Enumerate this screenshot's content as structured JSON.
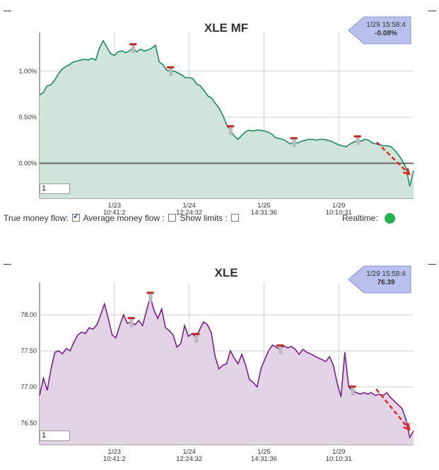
{
  "chart_data": [
    {
      "type": "area",
      "title": "XLE MF",
      "badge": {
        "time": "1/29 15:58:4",
        "value": "-0.08%"
      },
      "y_ticks": [
        "1.00%",
        "0.50%",
        "0.00%"
      ],
      "x_ticks": [
        {
          "date": "1/23",
          "time": "10:41:2"
        },
        {
          "date": "1/24",
          "time": "12:24:32"
        },
        {
          "date": "1/25",
          "time": "14:31:36"
        },
        {
          "date": "1/29",
          "time": "10:10:31"
        }
      ],
      "x_tick_pos": [
        0.2,
        0.4,
        0.6,
        0.8
      ],
      "ylim": [
        -0.38,
        1.42
      ],
      "zero_line": 0,
      "input_value": "1",
      "line_color": "#1e8a60",
      "fill_color": "#cfe5dc",
      "values": [
        0.74,
        0.77,
        0.84,
        0.85,
        0.9,
        0.97,
        1.02,
        1.05,
        1.07,
        1.1,
        1.11,
        1.12,
        1.13,
        1.12,
        1.14,
        1.12,
        1.25,
        1.33,
        1.26,
        1.19,
        1.17,
        1.21,
        1.22,
        1.2,
        1.22,
        1.25,
        1.21,
        1.24,
        1.22,
        1.23,
        1.25,
        1.28,
        1.1,
        1.07,
        1.01,
        1.0,
        1.0,
        0.98,
        0.96,
        0.93,
        0.93,
        0.92,
        0.86,
        0.84,
        0.79,
        0.73,
        0.71,
        0.65,
        0.6,
        0.52,
        0.42,
        0.36,
        0.3,
        0.26,
        0.3,
        0.34,
        0.36,
        0.35,
        0.36,
        0.36,
        0.35,
        0.34,
        0.32,
        0.28,
        0.27,
        0.26,
        0.24,
        0.21,
        0.23,
        0.22,
        0.24,
        0.25,
        0.26,
        0.26,
        0.25,
        0.26,
        0.26,
        0.25,
        0.24,
        0.22,
        0.2,
        0.19,
        0.18,
        0.21,
        0.23,
        0.25,
        0.24,
        0.26,
        0.25,
        0.22,
        0.21,
        0.2,
        0.19,
        0.19,
        0.18,
        0.14,
        0.09,
        0.03,
        -0.05,
        -0.25,
        -0.08
      ],
      "markers": [
        0.25,
        0.346,
        0.505,
        0.68,
        0.847
      ]
    },
    {
      "type": "area",
      "title": "XLE",
      "badge": {
        "time": "1/29 15:58:4",
        "value": "76.39"
      },
      "y_ticks": [
        "78.00",
        "77.50",
        "77.00",
        "76.50"
      ],
      "y_tick_values": [
        78.0,
        77.5,
        77.0,
        76.5
      ],
      "x_ticks": [
        {
          "date": "1/23",
          "time": "10:41:2"
        },
        {
          "date": "1/24",
          "time": "12:24:32"
        },
        {
          "date": "1/25",
          "time": "14:31:36"
        },
        {
          "date": "1/29",
          "time": "10:10:31"
        }
      ],
      "x_tick_pos": [
        0.2,
        0.4,
        0.6,
        0.8
      ],
      "ylim": [
        76.2,
        78.45
      ],
      "input_value": "1",
      "line_color": "#7a1f8a",
      "fill_color": "#e2d4e6",
      "values": [
        76.88,
        77.12,
        76.95,
        77.25,
        77.48,
        77.5,
        77.46,
        77.53,
        77.5,
        77.62,
        77.72,
        77.76,
        77.74,
        77.82,
        77.8,
        77.86,
        78.0,
        78.15,
        77.95,
        77.72,
        77.68,
        77.85,
        78.0,
        77.88,
        77.9,
        77.86,
        77.92,
        77.85,
        78.05,
        78.25,
        78.06,
        77.95,
        78.08,
        77.82,
        77.78,
        77.72,
        77.55,
        77.6,
        77.85,
        77.7,
        77.74,
        77.68,
        77.8,
        77.9,
        77.86,
        77.75,
        77.42,
        77.25,
        77.3,
        77.32,
        77.5,
        77.4,
        77.32,
        77.45,
        77.3,
        77.1,
        77.06,
        77.0,
        77.25,
        77.38,
        77.5,
        77.58,
        77.55,
        77.52,
        77.57,
        77.54,
        77.56,
        77.52,
        77.45,
        77.52,
        77.48,
        77.46,
        77.43,
        77.4,
        77.38,
        77.35,
        77.42,
        77.3,
        77.05,
        76.86,
        77.48,
        77.0,
        76.95,
        76.92,
        76.9,
        76.92,
        76.9,
        76.92,
        76.88,
        76.9,
        76.88,
        76.92,
        76.85,
        76.8,
        76.75,
        76.7,
        76.55,
        76.3,
        76.39
      ],
      "markers": [
        0.245,
        0.3,
        0.42,
        0.64,
        0.84
      ]
    }
  ],
  "controls": {
    "true_money_flow": "True money flow:",
    "average_money_flow": "Average money flow :",
    "show_limits": "Show limits :",
    "realtime": "Realtime:",
    "realtime_color": "#22b14c"
  }
}
